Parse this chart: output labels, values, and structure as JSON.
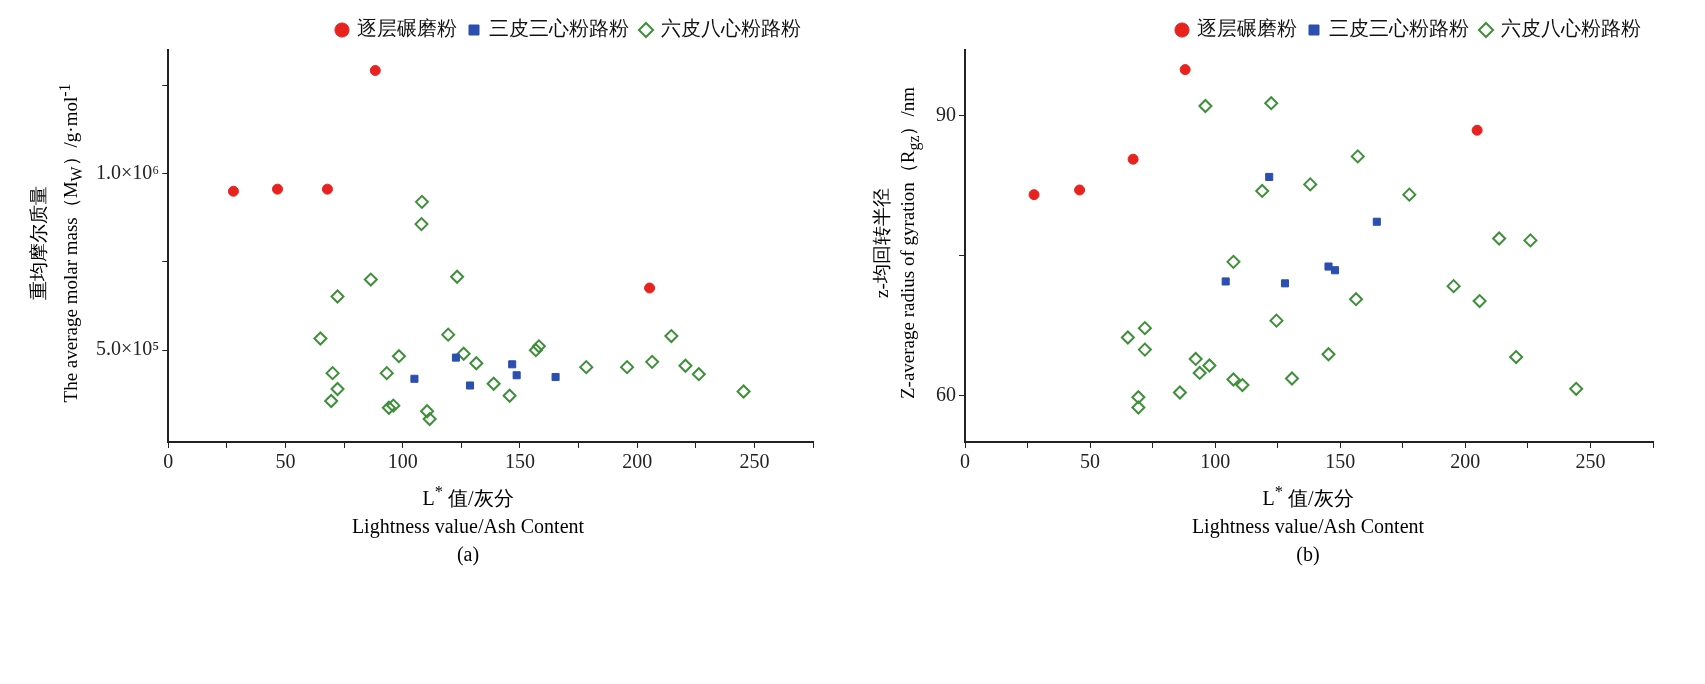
{
  "chart_data": [
    {
      "type": "scatter",
      "xlabel": "L$^{*}$ 值/灰分\nLightness value/Ash Content",
      "ylabel": "重均摩尔质量\nThe average molar mass（M$_{W}$）/g·mol$^{-1}$",
      "annotations": [
        "(a)"
      ],
      "xlim": [
        0,
        275
      ],
      "xticks": [
        0,
        {
          "value": 25,
          "label": null
        },
        50,
        {
          "value": 75,
          "label": null
        },
        100,
        {
          "value": 125,
          "label": null
        },
        150,
        {
          "value": 175,
          "label": null
        },
        200,
        {
          "value": 225,
          "label": null
        },
        250,
        {
          "value": 275,
          "label": null
        }
      ],
      "ylim": [
        240000,
        1350000
      ],
      "yticks": [
        {
          "value": 500000,
          "label": "5.0×10⁵"
        },
        {
          "value": 750000,
          "label": null
        },
        {
          "value": 1000000,
          "label": "1.0×10⁶"
        },
        {
          "value": 1250000,
          "label": null
        }
      ],
      "grid": false,
      "legend": "top right",
      "series": [
        {
          "name": "逐层碾磨粉",
          "color": "#e8231f",
          "marker": "circle",
          "x": [
            27.8,
            46.6,
            67.9,
            88.3,
            205.3
          ],
          "values": [
            950000,
            956000,
            956000,
            1292000,
            676000
          ]
        },
        {
          "name": "三皮三心粉路粉",
          "color": "#2b4fb0",
          "marker": "square",
          "x": [
            105,
            122.7,
            128.7,
            146.7,
            148.6,
            165.2
          ],
          "values": [
            419000,
            479000,
            400000,
            460000,
            429000,
            424000
          ]
        },
        {
          "name": "六皮八心粉路粉",
          "color": "#3f8f3a",
          "marker": "diamond",
          "x": [
            64.9,
            70.1,
            72.2,
            69.5,
            72.2,
            86.4,
            93.2,
            98.4,
            94.1,
            96,
            108.2,
            108,
            110.4,
            111.5,
            119.4,
            123.2,
            126,
            131.4,
            138.8,
            145.6,
            156.8,
            158.1,
            178.3,
            195.7,
            206.4,
            214.6,
            220.6,
            226.3,
            245.4
          ],
          "values": [
            533000,
            435000,
            390000,
            356000,
            652000,
            700000,
            435000,
            483000,
            337000,
            343000,
            920000,
            857000,
            327000,
            305000,
            544000,
            708000,
            490000,
            463000,
            405000,
            371000,
            500000,
            511000,
            452000,
            452000,
            467000,
            540000,
            456000,
            432000,
            383000
          ]
        }
      ]
    },
    {
      "type": "scatter",
      "xlabel": "L$^{*}$ 值/灰分\nLightness value/Ash Content",
      "ylabel": "z-均回转半径\nZ-average radius of gyration（R$_{gz}$）/nm",
      "annotations": [
        "(b)"
      ],
      "xlim": [
        0,
        275
      ],
      "xticks": [
        0,
        {
          "value": 25,
          "label": null
        },
        50,
        {
          "value": 75,
          "label": null
        },
        100,
        {
          "value": 125,
          "label": null
        },
        150,
        {
          "value": 175,
          "label": null
        },
        200,
        {
          "value": 225,
          "label": null
        },
        250,
        {
          "value": 275,
          "label": null
        }
      ],
      "ylim": [
        55,
        97
      ],
      "yticks": [
        60,
        {
          "value": 75,
          "label": null
        },
        90
      ],
      "grid": false,
      "legend": "top right",
      "series": [
        {
          "name": "逐层碾磨粉",
          "color": "#e8231f",
          "marker": "circle",
          "x": [
            27.6,
            45.8,
            67.2,
            88,
            204.7
          ],
          "values": [
            81.5,
            82,
            85.3,
            94.9,
            88.4
          ]
        },
        {
          "name": "三皮三心粉路粉",
          "color": "#2b4fb0",
          "marker": "square",
          "x": [
            104.2,
            121.6,
            127.9,
            145.3,
            147.9,
            164.6
          ],
          "values": [
            72.2,
            83.4,
            72,
            73.8,
            73.4,
            78.6
          ]
        },
        {
          "name": "六皮八心粉路粉",
          "color": "#3f8f3a",
          "marker": "diamond",
          "x": [
            96.1,
            122.4,
            157,
            138,
            118.8,
            177.6,
            213.5,
            226,
            107.3,
            195.3,
            156.3,
            205.7,
            124.5,
            65.1,
            71.9,
            71.9,
            145.3,
            220.3,
            92.2,
            97.7,
            93.8,
            107.3,
            110.9,
            130.7,
            85.9,
            69.3,
            69.3,
            244.3
          ],
          "values": [
            91,
            91.3,
            85.6,
            82.6,
            81.9,
            81.5,
            76.8,
            76.6,
            74.3,
            71.7,
            70.3,
            70.1,
            68,
            66.2,
            67.2,
            64.9,
            64.4,
            64.1,
            63.9,
            63.2,
            62.4,
            61.7,
            61.1,
            61.8,
            60.3,
            59.8,
            58.7,
            60.7
          ]
        }
      ]
    }
  ]
}
